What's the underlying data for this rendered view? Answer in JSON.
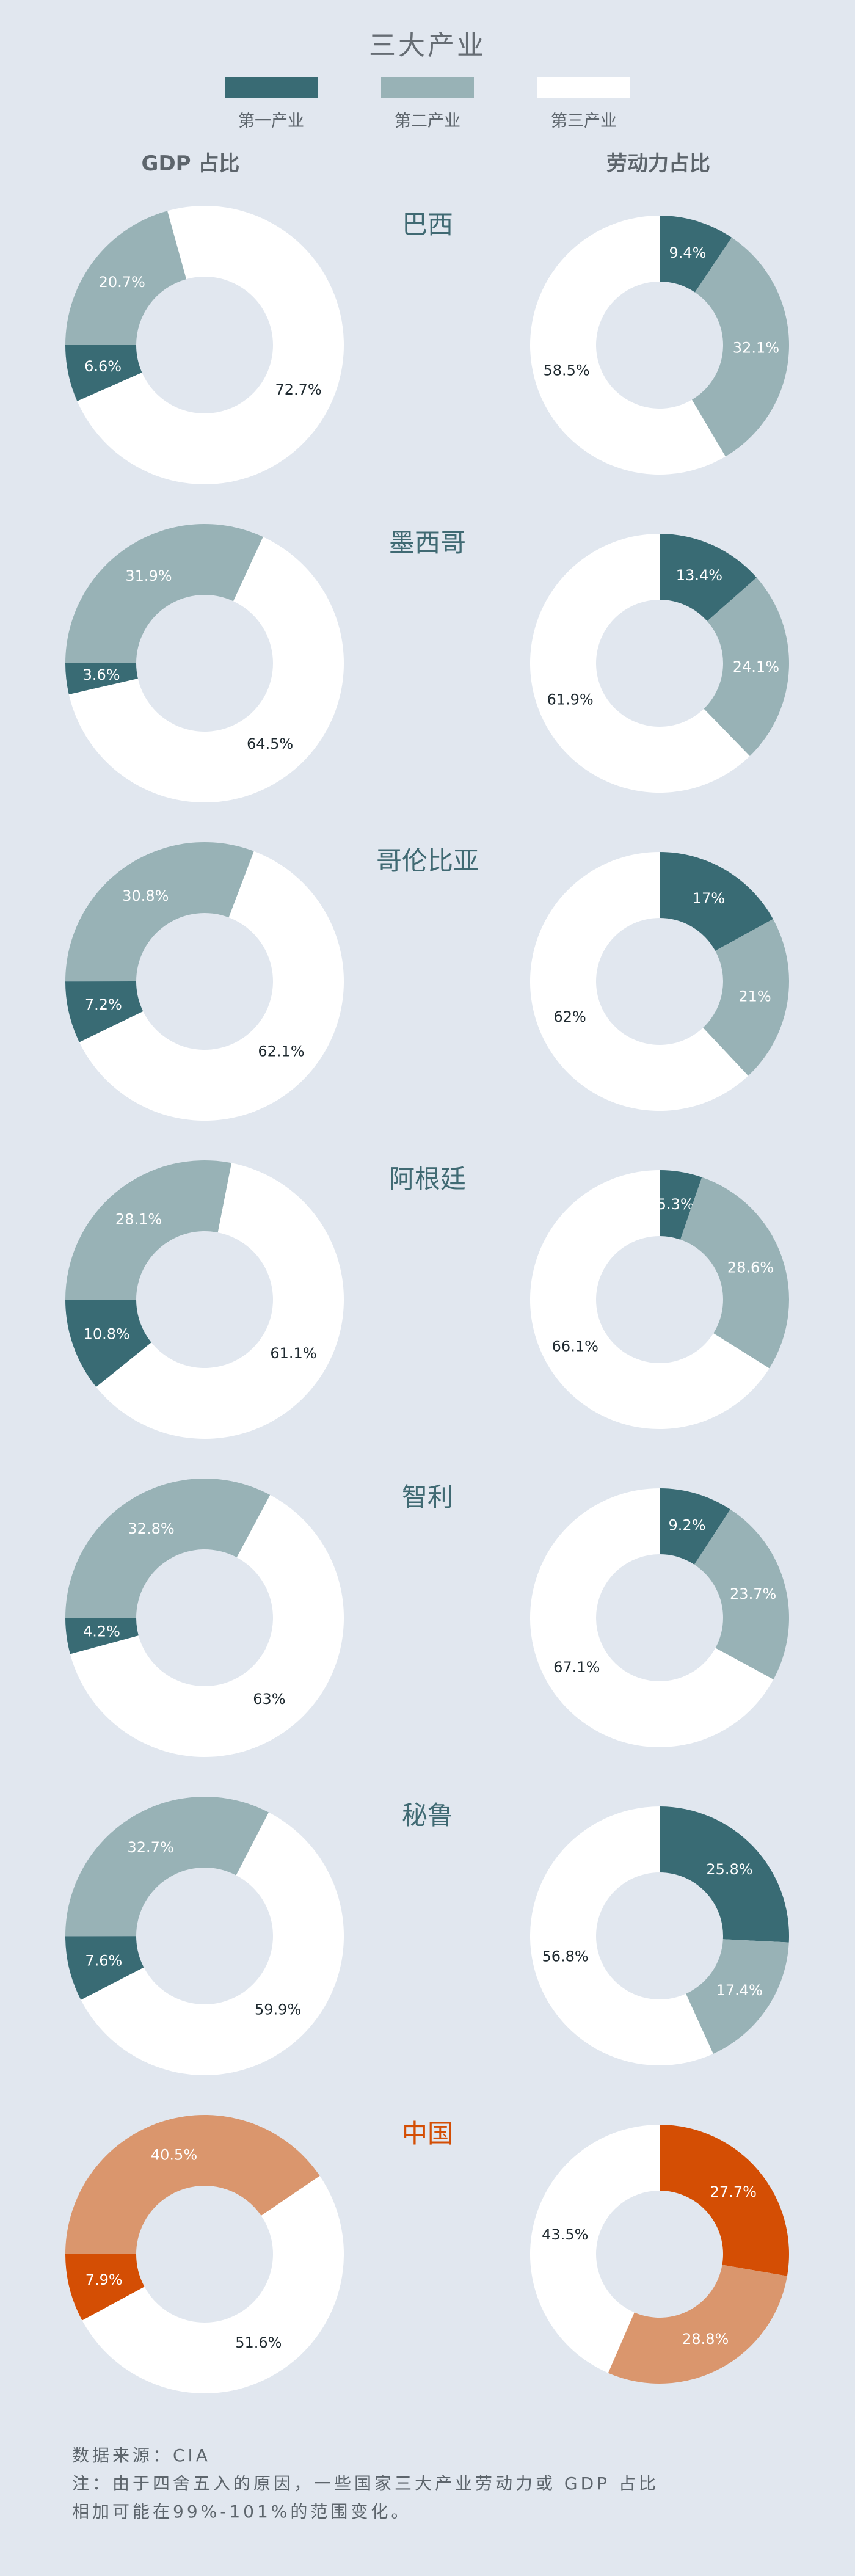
{
  "title": "三大产业",
  "legend": [
    {
      "label": "第一产业",
      "color": "#396b74"
    },
    {
      "label": "第二产业",
      "color": "#98b2b6"
    },
    {
      "label": "第三产业",
      "color": "#ffffff"
    }
  ],
  "column_headers": {
    "gdp": "GDP 占比",
    "labor": "劳动力占比"
  },
  "colors": {
    "primary": "#396b74",
    "secondary": "#98b2b6",
    "tertiary": "#ffffff",
    "primary_highlight": "#d44e04",
    "secondary_highlight": "#da966d",
    "country_label": "#406a73",
    "country_label_highlight": "#d44e04",
    "background": "#e1e7ef"
  },
  "chart_data": {
    "type": "pie",
    "variant": "donut",
    "categories": [
      "第一产业",
      "第二产业",
      "第三产业"
    ],
    "countries": [
      {
        "name": "巴西",
        "highlight": false,
        "gdp": [
          6.6,
          20.7,
          72.7
        ],
        "labor": [
          9.4,
          32.1,
          58.5
        ]
      },
      {
        "name": "墨西哥",
        "highlight": false,
        "gdp": [
          3.6,
          31.9,
          64.5
        ],
        "labor": [
          13.4,
          24.1,
          61.9
        ]
      },
      {
        "name": "哥伦比亚",
        "highlight": false,
        "gdp": [
          7.2,
          30.8,
          62.1
        ],
        "labor": [
          17,
          21,
          62
        ]
      },
      {
        "name": "阿根廷",
        "highlight": false,
        "gdp": [
          10.8,
          28.1,
          61.1
        ],
        "labor": [
          5.3,
          28.6,
          66.1
        ]
      },
      {
        "name": "智利",
        "highlight": false,
        "gdp": [
          4.2,
          32.8,
          63
        ],
        "labor": [
          9.2,
          23.7,
          67.1
        ]
      },
      {
        "name": "秘鲁",
        "highlight": false,
        "gdp": [
          7.6,
          32.7,
          59.9
        ],
        "labor": [
          25.8,
          17.4,
          56.8
        ]
      },
      {
        "name": "中国",
        "highlight": true,
        "gdp": [
          7.9,
          40.5,
          51.6
        ],
        "labor": [
          27.7,
          28.8,
          43.5
        ]
      }
    ]
  },
  "footer": {
    "source": "数据来源：CIA",
    "note_line1": "注：由于四舍五入的原因，一些国家三大产业劳动力或 GDP 占比",
    "note_line2": "相加可能在99%-101%的范围变化。"
  }
}
